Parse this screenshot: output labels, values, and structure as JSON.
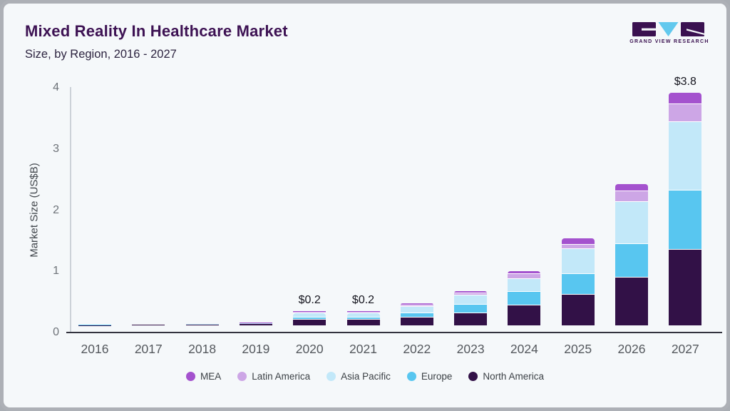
{
  "header": {
    "title": "Mixed Reality In Healthcare Market",
    "subtitle": "Size, by Region, 2016 - 2027"
  },
  "logo": {
    "text": "GRAND VIEW RESEARCH",
    "block_color": "#3a1150",
    "triangle_color": "#62c9ee"
  },
  "chart_data": {
    "type": "bar",
    "stacked": true,
    "title": "Mixed Reality In Healthcare Market",
    "subtitle": "Size, by Region, 2016 - 2027",
    "xlabel": "",
    "ylabel": "Market Size (US$B)",
    "ylim": [
      0,
      4
    ],
    "yticks": [
      0,
      1,
      2,
      3,
      4
    ],
    "grid": false,
    "legend_position": "bottom",
    "categories": [
      "2016",
      "2017",
      "2018",
      "2019",
      "2020",
      "2021",
      "2022",
      "2023",
      "2024",
      "2025",
      "2026",
      "2027"
    ],
    "series": [
      {
        "name": "North America",
        "color": "#321147",
        "values": [
          0.005,
          0.007,
          0.012,
          0.02,
          0.09,
          0.09,
          0.13,
          0.2,
          0.33,
          0.5,
          0.78,
          1.24
        ]
      },
      {
        "name": "Europe",
        "color": "#58c6f0",
        "values": [
          0.002,
          0.003,
          0.005,
          0.006,
          0.04,
          0.04,
          0.07,
          0.14,
          0.22,
          0.34,
          0.55,
          0.96
        ]
      },
      {
        "name": "Asia Pacific",
        "color": "#c2e8f9",
        "values": [
          0.002,
          0.003,
          0.005,
          0.012,
          0.07,
          0.07,
          0.1,
          0.15,
          0.21,
          0.41,
          0.69,
          1.12
        ]
      },
      {
        "name": "Latin America",
        "color": "#cda6e6",
        "values": [
          0.001,
          0.001,
          0.002,
          0.003,
          0.02,
          0.02,
          0.03,
          0.03,
          0.08,
          0.07,
          0.17,
          0.3
        ]
      },
      {
        "name": "MEA",
        "color": "#a452ce",
        "values": [
          0.001,
          0.001,
          0.002,
          0.002,
          0.01,
          0.01,
          0.03,
          0.04,
          0.05,
          0.1,
          0.12,
          0.18
        ]
      }
    ],
    "bar_labels": [
      "",
      "",
      "",
      "",
      "$0.2",
      "$0.2",
      "",
      "",
      "",
      "",
      "",
      "$3.8"
    ],
    "legend": [
      {
        "label": "MEA",
        "color": "#a452ce"
      },
      {
        "label": "Latin America",
        "color": "#cda6e6"
      },
      {
        "label": "Asia Pacific",
        "color": "#c2e8f9"
      },
      {
        "label": "Europe",
        "color": "#58c6f0"
      },
      {
        "label": "North America",
        "color": "#321147"
      }
    ]
  }
}
